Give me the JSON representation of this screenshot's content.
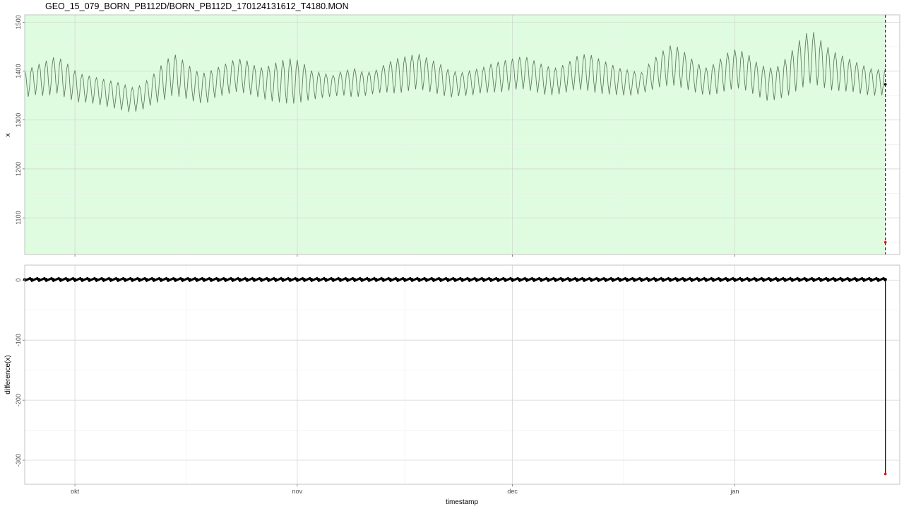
{
  "title": "GEO_15_079_BORN_PB112D/BORN_PB112D_170124131612_T4180.MON",
  "colors": {
    "panel_bg": "#e0fce0",
    "series_line": "#5f7f5f",
    "diff_line": "#000000",
    "marker": "#000000",
    "outlier": "#ff0000",
    "grid": "#d6d6d6",
    "panel_border": "#b5b5b5"
  },
  "chart_data": [
    {
      "type": "line",
      "panel": "top",
      "xlabel": "",
      "ylabel": "x",
      "ylim": [
        1025,
        1515
      ],
      "yticks": [
        1100,
        1200,
        1300,
        1400,
        1500
      ],
      "xlim": [
        "2016-09-24",
        "2017-01-24"
      ],
      "xticks": [
        {
          "date": "2016-10-01",
          "label": "okt"
        },
        {
          "date": "2016-11-01",
          "label": "nov"
        },
        {
          "date": "2016-12-01",
          "label": "dec"
        },
        {
          "date": "2017-01-01",
          "label": "jan"
        }
      ],
      "highlight_region": {
        "x_start": "2016-09-24",
        "x_end": "2017-01-22"
      },
      "vline_dashed_at": "2017-01-22",
      "series": [
        {
          "sample_interval_hours": 4,
          "x_start": "2016-09-24",
          "x_end": "2017-01-22",
          "envelope_upper": [
            1405,
            1415,
            1425,
            1435,
            1420,
            1400,
            1395,
            1390,
            1385,
            1380,
            1370,
            1375,
            1395,
            1420,
            1440,
            1425,
            1405,
            1400,
            1410,
            1420,
            1430,
            1425,
            1410,
            1415,
            1425,
            1430,
            1425,
            1405,
            1400,
            1395,
            1405,
            1410,
            1400,
            1405,
            1420,
            1430,
            1435,
            1440,
            1430,
            1420,
            1405,
            1400,
            1405,
            1410,
            1420,
            1425,
            1430,
            1435,
            1425,
            1415,
            1410,
            1420,
            1435,
            1440,
            1430,
            1420,
            1410,
            1405,
            1400,
            1425,
            1445,
            1460,
            1445,
            1425,
            1410,
            1420,
            1440,
            1450,
            1440,
            1420,
            1410,
            1415,
            1440,
            1470,
            1490,
            1465,
            1445,
            1435,
            1425,
            1415,
            1405,
            1410
          ],
          "envelope_lower": [
            1340,
            1345,
            1340,
            1345,
            1335,
            1330,
            1330,
            1325,
            1320,
            1315,
            1310,
            1315,
            1325,
            1330,
            1340,
            1335,
            1330,
            1325,
            1340,
            1345,
            1350,
            1345,
            1340,
            1330,
            1325,
            1320,
            1325,
            1335,
            1340,
            1345,
            1345,
            1340,
            1345,
            1350,
            1350,
            1345,
            1350,
            1355,
            1350,
            1345,
            1340,
            1345,
            1345,
            1350,
            1350,
            1350,
            1355,
            1355,
            1350,
            1345,
            1345,
            1350,
            1355,
            1350,
            1345,
            1345,
            1345,
            1345,
            1350,
            1355,
            1360,
            1360,
            1355,
            1350,
            1345,
            1345,
            1350,
            1355,
            1350,
            1340,
            1330,
            1335,
            1340,
            1350,
            1360,
            1355,
            1350,
            1350,
            1350,
            1345,
            1345,
            1345
          ],
          "last_point": {
            "x": "2017-01-22",
            "y": 1373
          },
          "outlier_point": {
            "x": "2017-01-22",
            "y": 1050
          }
        }
      ]
    },
    {
      "type": "line",
      "panel": "bottom",
      "xlabel": "timestamp",
      "ylabel": "difference(x)",
      "ylim": [
        -340,
        25
      ],
      "yticks": [
        -300,
        -200,
        -100,
        0
      ],
      "xlim": [
        "2016-09-24",
        "2017-01-24"
      ],
      "xticks": [
        {
          "date": "2016-10-01",
          "label": "okt"
        },
        {
          "date": "2016-11-01",
          "label": "nov"
        },
        {
          "date": "2016-12-01",
          "label": "dec"
        },
        {
          "date": "2017-01-01",
          "label": "jan"
        }
      ],
      "series": [
        {
          "x_start": "2016-09-24",
          "x_end": "2017-01-22",
          "typical_y": 1,
          "outlier_point": {
            "x": "2017-01-22",
            "y": -323
          }
        }
      ]
    }
  ]
}
